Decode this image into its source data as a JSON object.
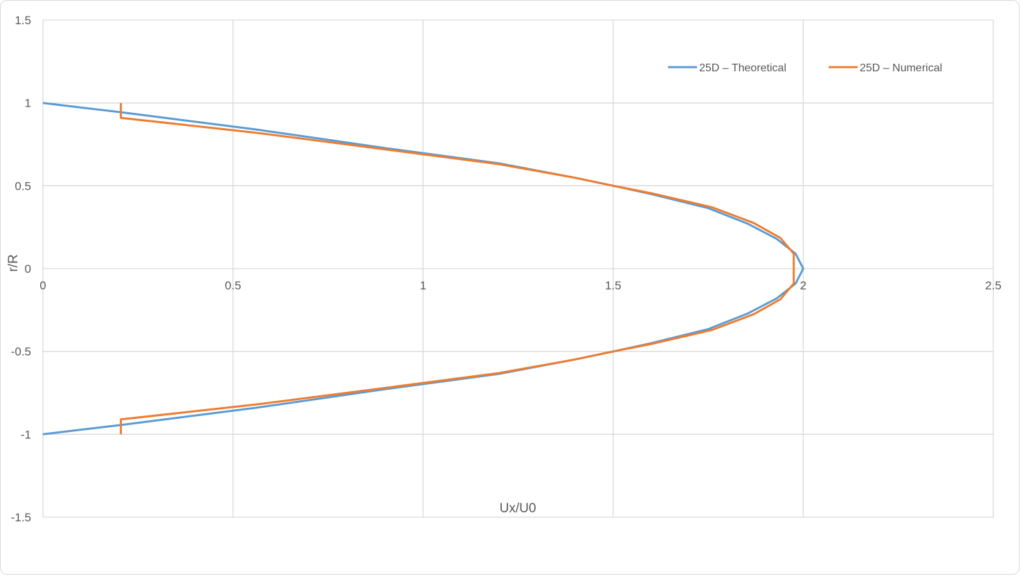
{
  "chart_data": {
    "type": "line",
    "title": "",
    "xlabel": "Ux/U0",
    "ylabel": "r/R",
    "xlim": [
      0,
      2.5
    ],
    "ylim": [
      -1.5,
      1.5
    ],
    "x_ticks": [
      "0",
      "0.5",
      "1",
      "1.5",
      "2",
      "2.5"
    ],
    "x_tick_values": [
      0,
      0.5,
      1,
      1.5,
      2,
      2.5
    ],
    "y_ticks": [
      "1.5",
      "1",
      "0.5",
      "0",
      "-0.5",
      "-1",
      "-1.5"
    ],
    "y_tick_values": [
      1.5,
      1,
      0.5,
      0,
      -0.5,
      -1,
      -1.5
    ],
    "grid": true,
    "legend_position": "top-right",
    "series": [
      {
        "name": "25D – Theoretical",
        "color": "#5b9bd5",
        "points": [
          [
            0,
            1
          ],
          [
            0.2,
            0.945
          ],
          [
            0.56,
            0.84
          ],
          [
            0.9,
            0.728
          ],
          [
            1.2,
            0.635
          ],
          [
            1.4,
            0.548
          ],
          [
            1.5,
            0.5
          ],
          [
            1.6,
            0.45
          ],
          [
            1.75,
            0.365
          ],
          [
            1.855,
            0.27
          ],
          [
            1.93,
            0.18
          ],
          [
            1.98,
            0.09
          ],
          [
            2,
            0
          ],
          [
            1.98,
            -0.09
          ],
          [
            1.93,
            -0.18
          ],
          [
            1.855,
            -0.27
          ],
          [
            1.75,
            -0.365
          ],
          [
            1.6,
            -0.45
          ],
          [
            1.5,
            -0.5
          ],
          [
            1.4,
            -0.548
          ],
          [
            1.2,
            -0.635
          ],
          [
            0.9,
            -0.728
          ],
          [
            0.56,
            -0.84
          ],
          [
            0.2,
            -0.945
          ],
          [
            0,
            -1
          ]
        ]
      },
      {
        "name": "25D – Numerical",
        "color": "#ed7d31",
        "points": [
          [
            0.205,
            1
          ],
          [
            0.205,
            0.91
          ],
          [
            0.56,
            0.82
          ],
          [
            0.9,
            0.72
          ],
          [
            1.2,
            0.63
          ],
          [
            1.4,
            0.548
          ],
          [
            1.5,
            0.5
          ],
          [
            1.6,
            0.455
          ],
          [
            1.76,
            0.37
          ],
          [
            1.87,
            0.275
          ],
          [
            1.94,
            0.185
          ],
          [
            1.975,
            0.09
          ],
          [
            1.975,
            -0.09
          ],
          [
            1.94,
            -0.185
          ],
          [
            1.87,
            -0.275
          ],
          [
            1.76,
            -0.37
          ],
          [
            1.6,
            -0.455
          ],
          [
            1.5,
            -0.5
          ],
          [
            1.4,
            -0.548
          ],
          [
            1.2,
            -0.63
          ],
          [
            0.9,
            -0.72
          ],
          [
            0.56,
            -0.82
          ],
          [
            0.205,
            -0.91
          ],
          [
            0.205,
            -1
          ]
        ]
      }
    ],
    "grid_color": "#d9d9d9",
    "text_color": "#595959"
  }
}
